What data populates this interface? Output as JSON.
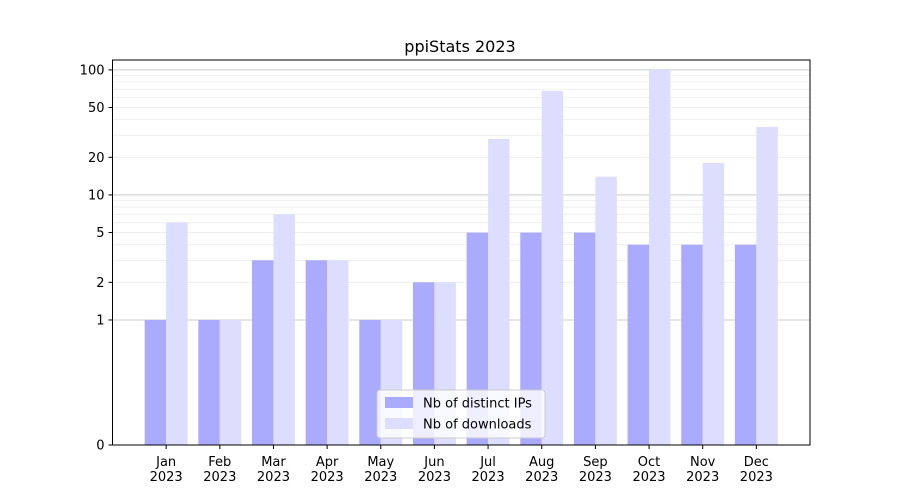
{
  "chart_data": {
    "type": "bar",
    "title": "ppiStats 2023",
    "xlabel": "",
    "ylabel": "",
    "yscale": "symlog",
    "ylim": [
      0,
      120
    ],
    "yticks": [
      0,
      1,
      2,
      5,
      10,
      20,
      50,
      100
    ],
    "categories": [
      "Jan\n2023",
      "Feb\n2023",
      "Mar\n2023",
      "Apr\n2023",
      "May\n2023",
      "Jun\n2023",
      "Jul\n2023",
      "Aug\n2023",
      "Sep\n2023",
      "Oct\n2023",
      "Nov\n2023",
      "Dec\n2023"
    ],
    "series": [
      {
        "name": "Nb of distinct IPs",
        "color": "#aaaaff",
        "values": [
          1,
          1,
          3,
          3,
          1,
          2,
          5,
          5,
          5,
          4,
          4,
          4
        ]
      },
      {
        "name": "Nb of downloads",
        "color": "#ddddff",
        "values": [
          6,
          1,
          7,
          3,
          1,
          2,
          28,
          68,
          14,
          100,
          18,
          35
        ]
      }
    ],
    "grid": true,
    "legend_position": "lower-center"
  }
}
